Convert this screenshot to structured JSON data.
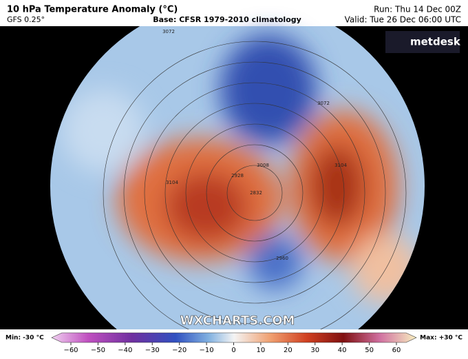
{
  "header": {
    "title": "10 hPa Temperature Anomaly (°C)",
    "model": "GFS 0.25°",
    "base": "Base: CFSR 1979-2010 climatology",
    "run": "Run: Thu 14 Dec 00Z",
    "valid": "Valid: Tue 26 Dec 06:00 UTC"
  },
  "logo": "metdesk",
  "watermark": "WXCHARTS.COM",
  "contour_labels": [
    "3072",
    "3072",
    "3104",
    "2928",
    "2832",
    "2960",
    "3008",
    "3104"
  ],
  "colorbar": {
    "min_label": "Min: -30 °C",
    "max_label": "Max: +30 °C",
    "ticks": [
      {
        "value": -60,
        "label": "−60"
      },
      {
        "value": -50,
        "label": "−50"
      },
      {
        "value": -40,
        "label": "−40"
      },
      {
        "value": -30,
        "label": "−30"
      },
      {
        "value": -20,
        "label": "−20"
      },
      {
        "value": -10,
        "label": "−10"
      },
      0,
      10,
      20,
      30,
      40,
      50,
      60
    ]
  }
}
